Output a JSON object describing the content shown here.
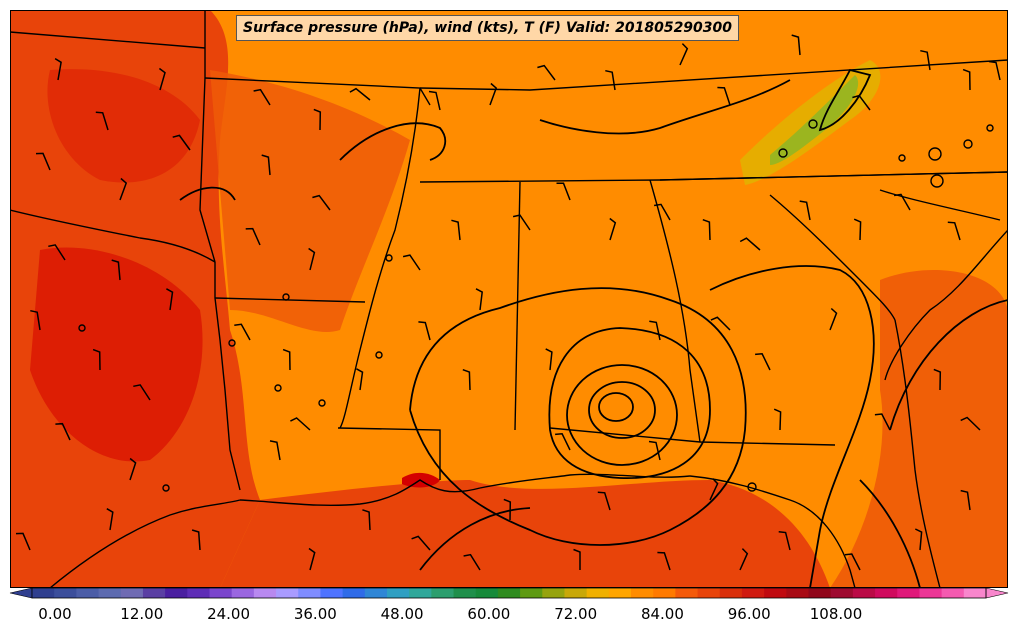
{
  "map": {
    "title": "Surface pressure (hPa), wind (kts), T (F) Valid: 201805290300",
    "colors": {
      "background": "#FF8C00",
      "warm_band": "#E8440A",
      "hot": "#D40000",
      "cool_green": "#9BB51F",
      "lines": "#000000"
    }
  },
  "colorbar": {
    "tick_labels": [
      "0.00",
      "12.00",
      "24.00",
      "36.00",
      "48.00",
      "60.00",
      "72.00",
      "84.00",
      "96.00",
      "108.00"
    ],
    "colors": [
      "#2F3F8F",
      "#3B4E9B",
      "#4B5DA7",
      "#5C6AAF",
      "#6F6BB3",
      "#5A3FA3",
      "#4A1FA0",
      "#5E2DB6",
      "#7A45CC",
      "#9A66E0",
      "#B889F0",
      "#A99BFF",
      "#7F8CFF",
      "#4E73FF",
      "#2F6BE8",
      "#2F86D6",
      "#2F9FC2",
      "#2FA79A",
      "#2C9E6E",
      "#1F8F4B",
      "#168A3A",
      "#2E8B1F",
      "#5E9A12",
      "#96A30D",
      "#C8A808",
      "#F0B000",
      "#FFA500",
      "#FF8C00",
      "#FF7A00",
      "#F45A0A",
      "#E8440A",
      "#D92E0A",
      "#D01A10",
      "#C00A10",
      "#A80A14",
      "#90061A",
      "#9E0A30",
      "#BA0A46",
      "#D00A5E",
      "#E0187A",
      "#EC3696",
      "#F45AB0",
      "#F886CC"
    ]
  }
}
